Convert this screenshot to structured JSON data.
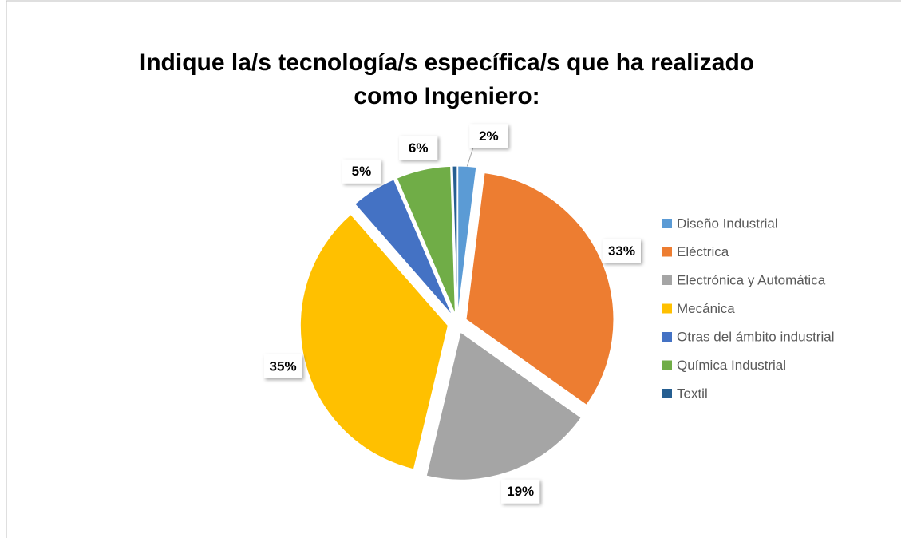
{
  "chart_data": {
    "type": "pie",
    "title": "Indique la/s tecnología/s específica/s que ha realizado como Ingeniero:",
    "categories": [
      "Diseño Industrial",
      "Eléctrica",
      "Electrónica y Automática",
      "Mecánica",
      "Otras del ámbito industrial",
      "Química Industrial",
      "Textil"
    ],
    "values": [
      2,
      33,
      19,
      35,
      5,
      6,
      0.5
    ],
    "value_labels": [
      "2%",
      "33%",
      "19%",
      "35%",
      "5%",
      "6%",
      null
    ],
    "colors": [
      "#5b9bd5",
      "#ed7d31",
      "#a5a5a5",
      "#ffc000",
      "#4472c4",
      "#70ad47",
      "#255e91"
    ],
    "legend": "right"
  }
}
